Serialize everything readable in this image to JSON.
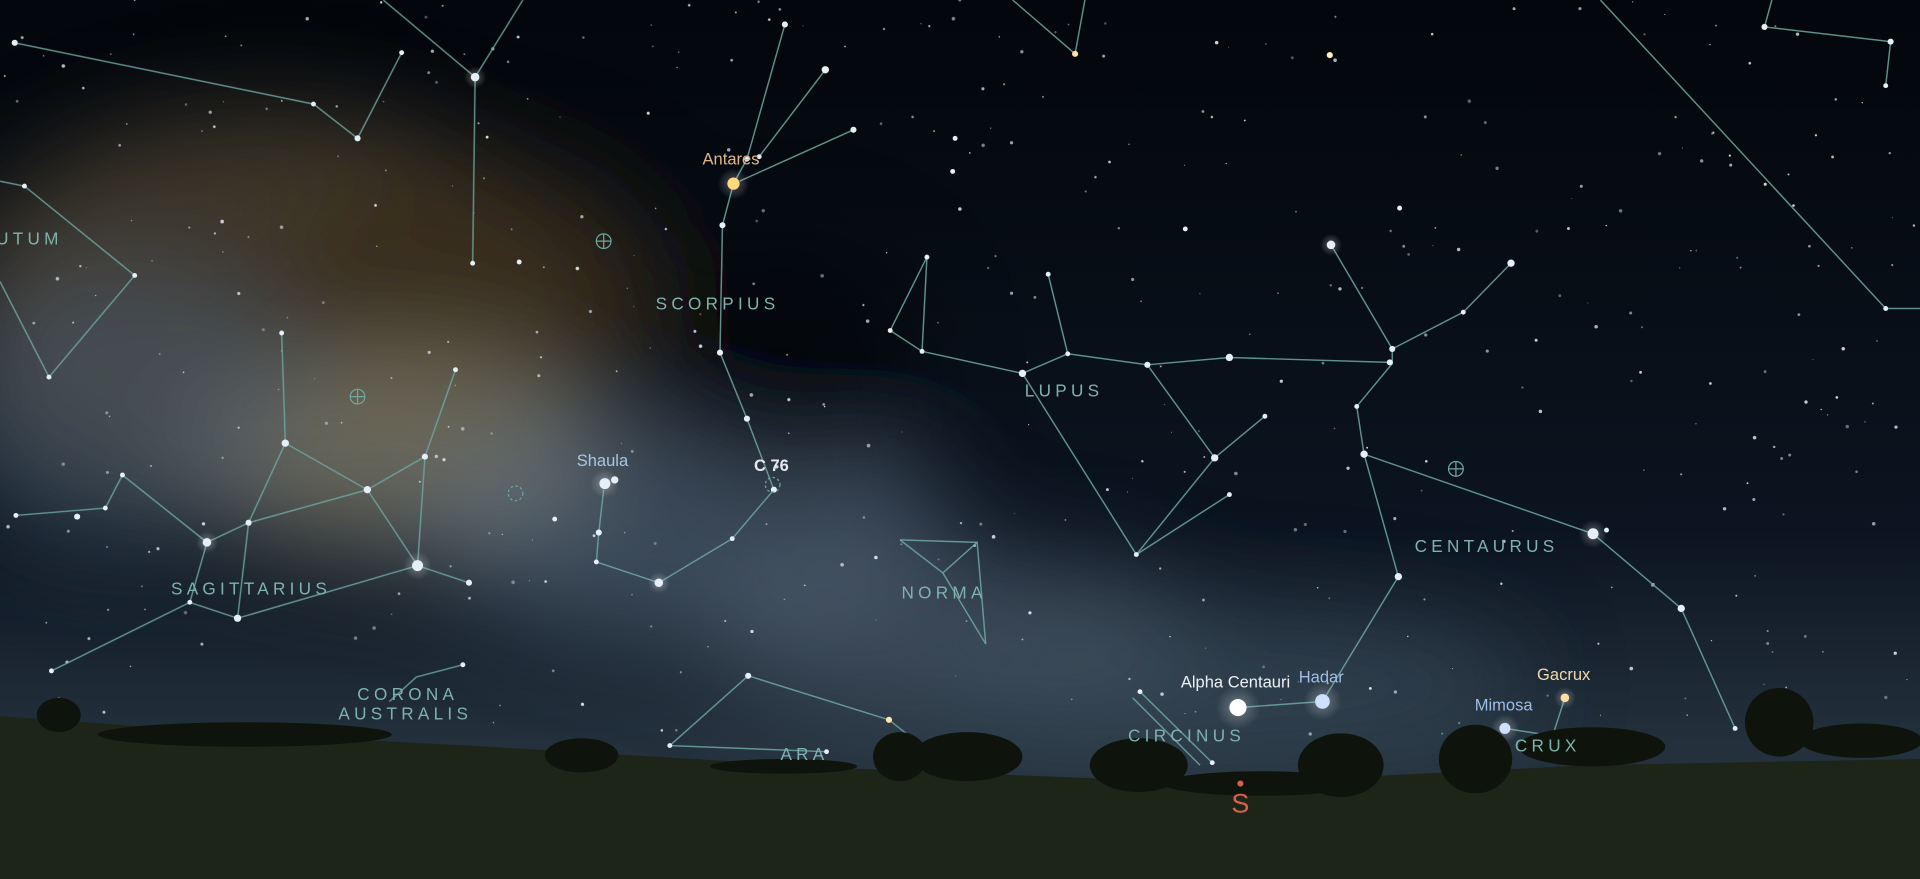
{
  "constellations": {
    "scutum": "UTUM",
    "scorpius": "SCORPIUS",
    "lupus": "LUPUS",
    "sagittarius": "SAGITTARIUS",
    "norma": "NORMA",
    "centaurus": "CENTAURUS",
    "corona_australis": [
      "CORONA",
      "AUSTRALIS"
    ],
    "ara": "ARA",
    "circinus": "CIRCINUS",
    "crux": "CRUX"
  },
  "stars": {
    "antares": "Antares",
    "shaula": "Shaula",
    "c76": "C 76",
    "alpha_centauri": "Alpha Centauri",
    "hadar": "Hadar",
    "mimosa": "Mimosa",
    "gacrux": "Gacrux"
  },
  "compass": {
    "south": "S"
  }
}
